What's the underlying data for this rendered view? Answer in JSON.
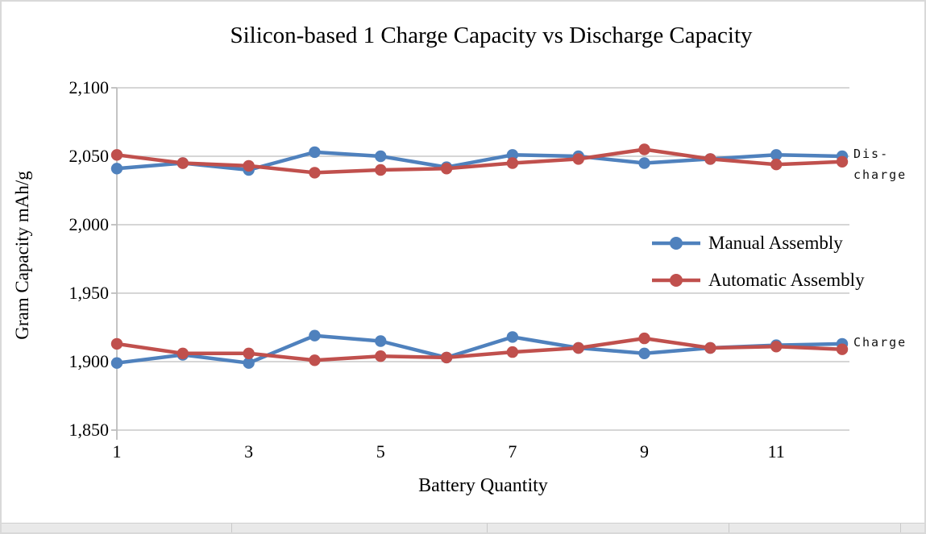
{
  "chart_data": {
    "type": "line",
    "title": "Silicon-based 1 Charge Capacity vs Discharge Capacity",
    "xlabel": "Battery Quantity",
    "ylabel": "Gram Capacity mAh/g",
    "xlim": [
      1,
      12
    ],
    "ylim": [
      1850,
      2100
    ],
    "grid": "horizontal",
    "legend_position": "middle-right",
    "x": [
      1,
      2,
      3,
      4,
      5,
      6,
      7,
      8,
      9,
      10,
      11,
      12
    ],
    "x_ticks": {
      "values": [
        1,
        3,
        5,
        7,
        9,
        11
      ],
      "labels": [
        "1",
        "3",
        "5",
        "7",
        "9",
        "11"
      ]
    },
    "y_ticks": {
      "values": [
        2100,
        2050,
        2000,
        1950,
        1900,
        1850
      ],
      "labels": [
        "2,100",
        "2,050",
        "2,000",
        "1,950",
        "1,900",
        "1,850"
      ]
    },
    "series": [
      {
        "name": "Manual Assembly",
        "group": "Discharge",
        "color": "#4F81BD",
        "values": [
          2041,
          2045,
          2040,
          2053,
          2050,
          2042,
          2051,
          2050,
          2045,
          2048,
          2051,
          2050
        ]
      },
      {
        "name": "Automatic Assembly",
        "group": "Discharge",
        "color": "#C0504D",
        "values": [
          2051,
          2045,
          2043,
          2038,
          2040,
          2041,
          2045,
          2048,
          2055,
          2048,
          2044,
          2046
        ]
      },
      {
        "name": "Manual Assembly",
        "group": "Charge",
        "color": "#4F81BD",
        "values": [
          1899,
          1905,
          1899,
          1919,
          1915,
          1903,
          1918,
          1910,
          1906,
          1910,
          1912,
          1913
        ]
      },
      {
        "name": "Automatic Assembly",
        "group": "Charge",
        "color": "#C0504D",
        "values": [
          1913,
          1906,
          1906,
          1901,
          1904,
          1903,
          1907,
          1910,
          1917,
          1910,
          1911,
          1909
        ]
      }
    ],
    "legend": [
      {
        "label": "Manual Assembly",
        "color": "#4F81BD"
      },
      {
        "label": "Automatic Assembly",
        "color": "#C0504D"
      }
    ],
    "annotations": {
      "discharge_line1": "Dis-",
      "discharge_line2": "charge",
      "charge": "Charge"
    },
    "colors": {
      "gridline": "#C9C9C9",
      "axis": "#BDBDBD",
      "manual_blue": "#4F81BD",
      "automatic_red": "#C0504D"
    }
  }
}
